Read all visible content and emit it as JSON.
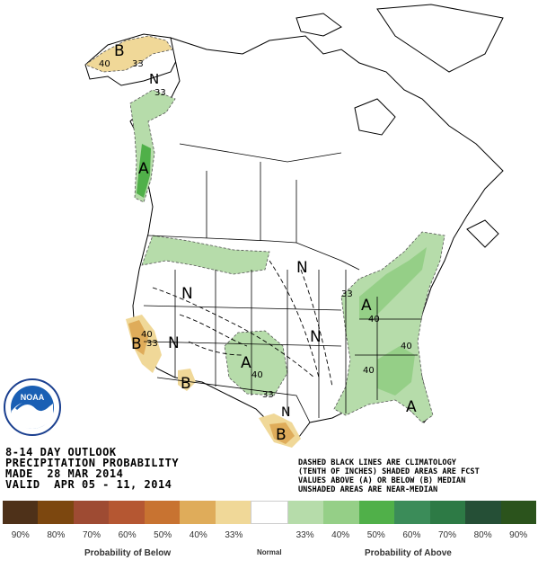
{
  "map": {
    "info_lines": [
      "8-14 DAY OUTLOOK",
      "PRECIPITATION PROBABILITY",
      "MADE  28 MAR 2014",
      "VALID  APR 05 - 11, 2014"
    ],
    "note_lines": [
      "DASHED BLACK LINES ARE CLIMATOLOGY",
      "(TENTH OF INCHES) SHADED AREAS ARE FCST",
      "VALUES ABOVE (A) OR BELOW (B) MEDIAN",
      "UNSHADED AREAS ARE NEAR-MEDIAN"
    ],
    "region_labels": [
      {
        "id": "b-alaska",
        "text": "B"
      },
      {
        "id": "n-alaska",
        "text": "N"
      },
      {
        "id": "a-pacific-nw",
        "text": "A"
      },
      {
        "id": "n-great-basin",
        "text": "N"
      },
      {
        "id": "b-california",
        "text": "B"
      },
      {
        "id": "n-southwest",
        "text": "N"
      },
      {
        "id": "b-new-mexico",
        "text": "B"
      },
      {
        "id": "a-plains",
        "text": "A"
      },
      {
        "id": "n-dakotas",
        "text": "N"
      },
      {
        "id": "n-central",
        "text": "N"
      },
      {
        "id": "a-ohio-valley",
        "text": "A"
      },
      {
        "id": "a-southeast",
        "text": "A"
      },
      {
        "id": "n-texas",
        "text": "N"
      },
      {
        "id": "b-texas",
        "text": "B"
      }
    ],
    "contour_labels": [
      {
        "id": "c40-alaska",
        "text": "40"
      },
      {
        "id": "c33-alaska-1",
        "text": "33"
      },
      {
        "id": "c33-alaska-2",
        "text": "33"
      },
      {
        "id": "c40-ca",
        "text": "40"
      },
      {
        "id": "c33-ca",
        "text": "33"
      },
      {
        "id": "c40-plains",
        "text": "40"
      },
      {
        "id": "c33-plains",
        "text": "33"
      },
      {
        "id": "c33-east",
        "text": "33"
      },
      {
        "id": "c40-east-1",
        "text": "40"
      },
      {
        "id": "c40-east-2",
        "text": "40"
      },
      {
        "id": "c40-east-3",
        "text": "40"
      }
    ]
  },
  "legend": {
    "below_colors": [
      "#4e3119",
      "#7c470f",
      "#9e4b33",
      "#b55732",
      "#c87331",
      "#dfac5a",
      "#f0d898"
    ],
    "normal_color": "#ffffff",
    "above_colors": [
      "#b6dcaa",
      "#95cf87",
      "#50b049",
      "#3b8c59",
      "#2d7a45",
      "#254f36",
      "#2b531c"
    ],
    "percentages": [
      "90%",
      "80%",
      "70%",
      "60%",
      "50%",
      "40%",
      "33%",
      "33%",
      "40%",
      "50%",
      "60%",
      "70%",
      "80%",
      "90%"
    ],
    "below_label": "Probability of Below",
    "normal_label": "Normal",
    "above_label": "Probability of Above"
  },
  "logo": {
    "text": "NOAA"
  }
}
